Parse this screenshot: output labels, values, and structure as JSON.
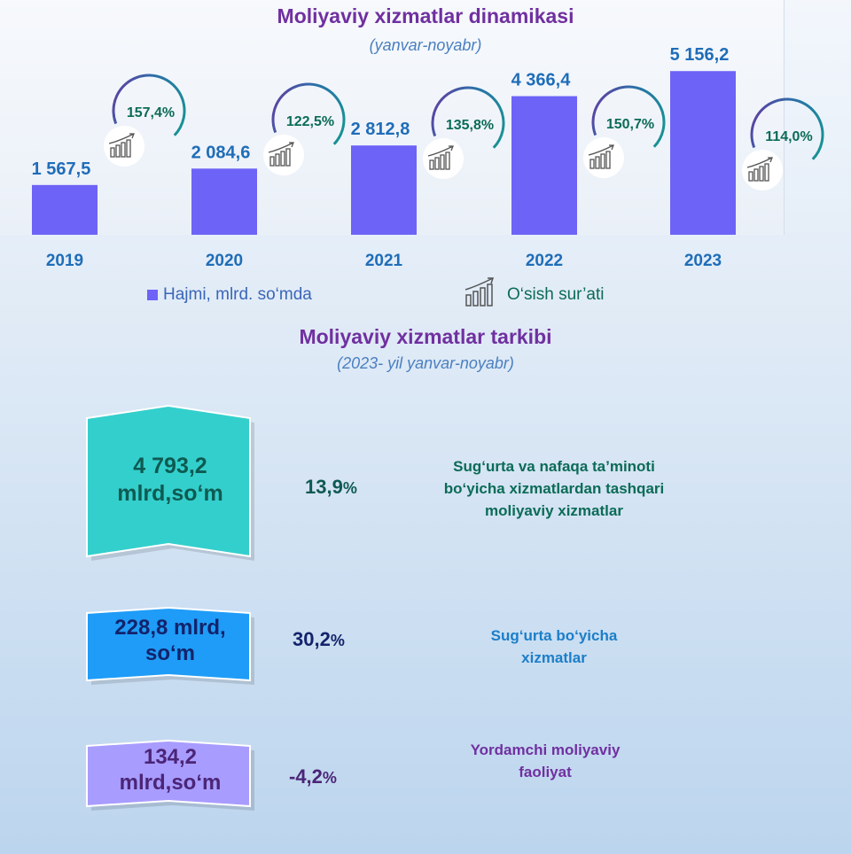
{
  "chart_data": {
    "type": "bar",
    "title": "Moliyaviy xizmatlar dinamikasi",
    "subtitle": "(yanvar-noyabr)",
    "categories": [
      "2019",
      "2020",
      "2021",
      "2022",
      "2023"
    ],
    "series": [
      {
        "name": "Hajmi, mlrd. so‘mda",
        "values": [
          1567.5,
          2084.6,
          2812.8,
          4366.4,
          5156.2
        ]
      }
    ],
    "value_labels": [
      "1 567,5",
      "2 084,6",
      "2 812,8",
      "4 366,4",
      "5 156,2"
    ],
    "growth": {
      "name": "O‘sish sur’ati",
      "values": [
        157.4,
        122.5,
        135.8,
        150.7,
        114.0
      ],
      "labels": [
        "157,4%",
        "122,5%",
        "135,8%",
        "150,7%",
        "114,0%"
      ]
    },
    "legend_position": "bottom",
    "ylim": [
      0,
      6000
    ],
    "bar_color": "#6d63f7"
  },
  "structure": {
    "title": "Moliyaviy xizmatlar tarkibi",
    "subtitle": "(2023- yil yanvar-noyabr)",
    "items": [
      {
        "value": "4 793,2 mlrd,so‘m",
        "value_lines": [
          "4 793,2",
          "mlrd,so‘m"
        ],
        "change": "13,9",
        "unit": "%",
        "label_lines": [
          "Sug‘urta va nafaqa ta’minoti",
          "bo‘yicha xizmatlardan tashqari",
          "moliyaviy xizmatlar"
        ],
        "color": "#33cfcc",
        "text_color": "#0e5a52"
      },
      {
        "value": "228,8 mlrd, so‘m",
        "value_lines": [
          "228,8 mlrd,",
          "so‘m"
        ],
        "change": "30,2",
        "unit": "%",
        "label_lines": [
          "Sug‘urta bo‘yicha",
          "xizmatlar"
        ],
        "color": "#1e9cf7",
        "text_color": "#13236b"
      },
      {
        "value": "134,2 mlrd,so‘m",
        "value_lines": [
          "134,2",
          "mlrd,so‘m"
        ],
        "change": "-4,2",
        "unit": "%",
        "label_lines": [
          "Yordamchi moliyaviy",
          "faoliyat"
        ],
        "color": "#a89cff",
        "text_color": "#4b2576"
      }
    ]
  },
  "colors": {
    "title": "#7030a0",
    "subtitle": "#4a7fc0",
    "bar_value": "#1f6db8",
    "year": "#1f6db8",
    "growth_text": "#0b6b57",
    "growth_ring": "#139b8e"
  },
  "icons": {
    "growth": "bar-growth-icon",
    "legend_bar": "square-icon"
  }
}
